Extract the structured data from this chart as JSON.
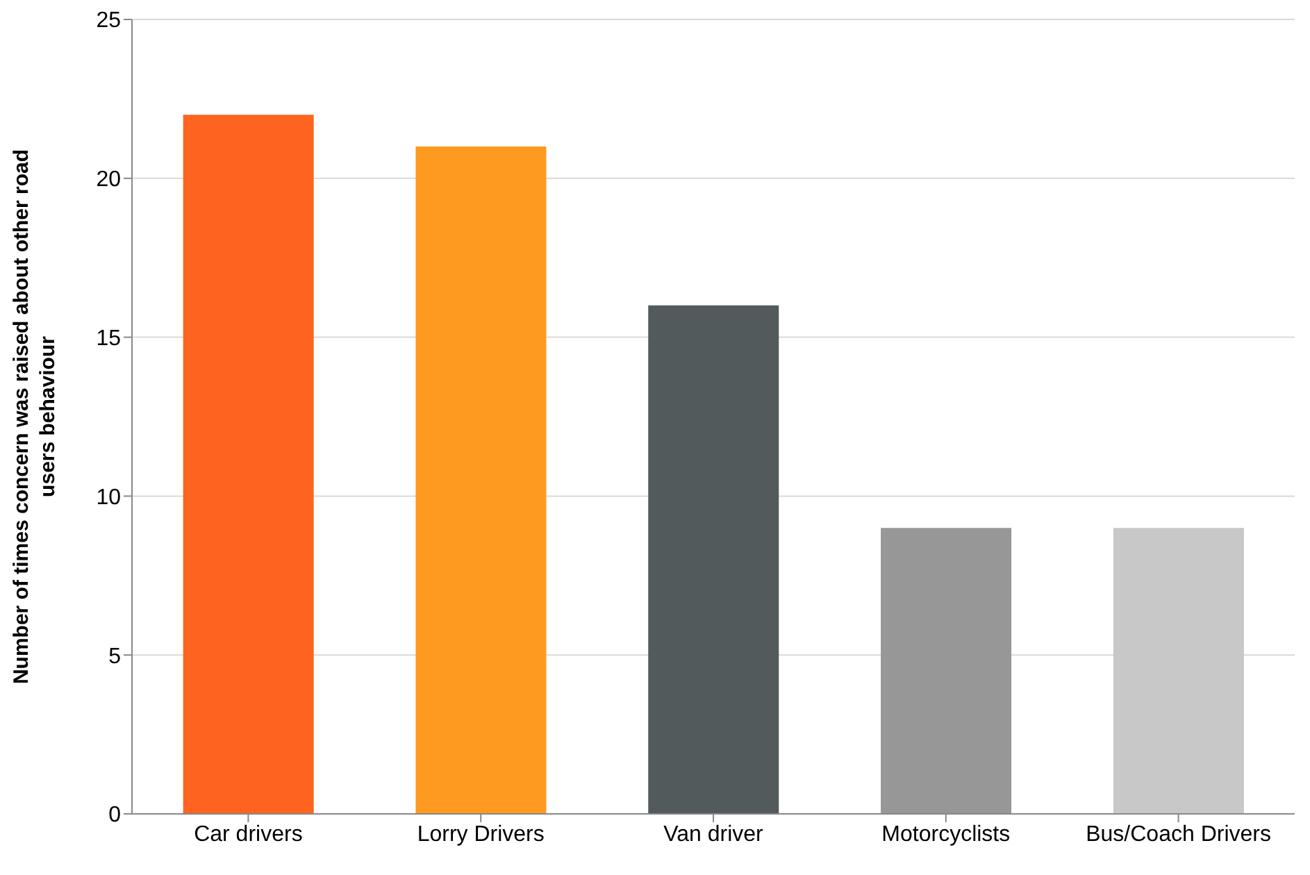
{
  "chart_data": {
    "type": "bar",
    "ylabel": "Number of times concern was raised about other road users behaviour",
    "categories": [
      "Car drivers",
      "Lorry Drivers",
      "Van driver",
      "Motorcyclists",
      "Bus/Coach Drivers"
    ],
    "values": [
      22,
      21,
      16,
      9,
      9
    ],
    "colors": [
      "#fe6420",
      "#fe9a20",
      "#525a5c",
      "#979797",
      "#c8c8c8"
    ],
    "ylim": [
      0,
      25
    ],
    "yticks": [
      0,
      5,
      10,
      15,
      20,
      25
    ],
    "grid": "y"
  }
}
